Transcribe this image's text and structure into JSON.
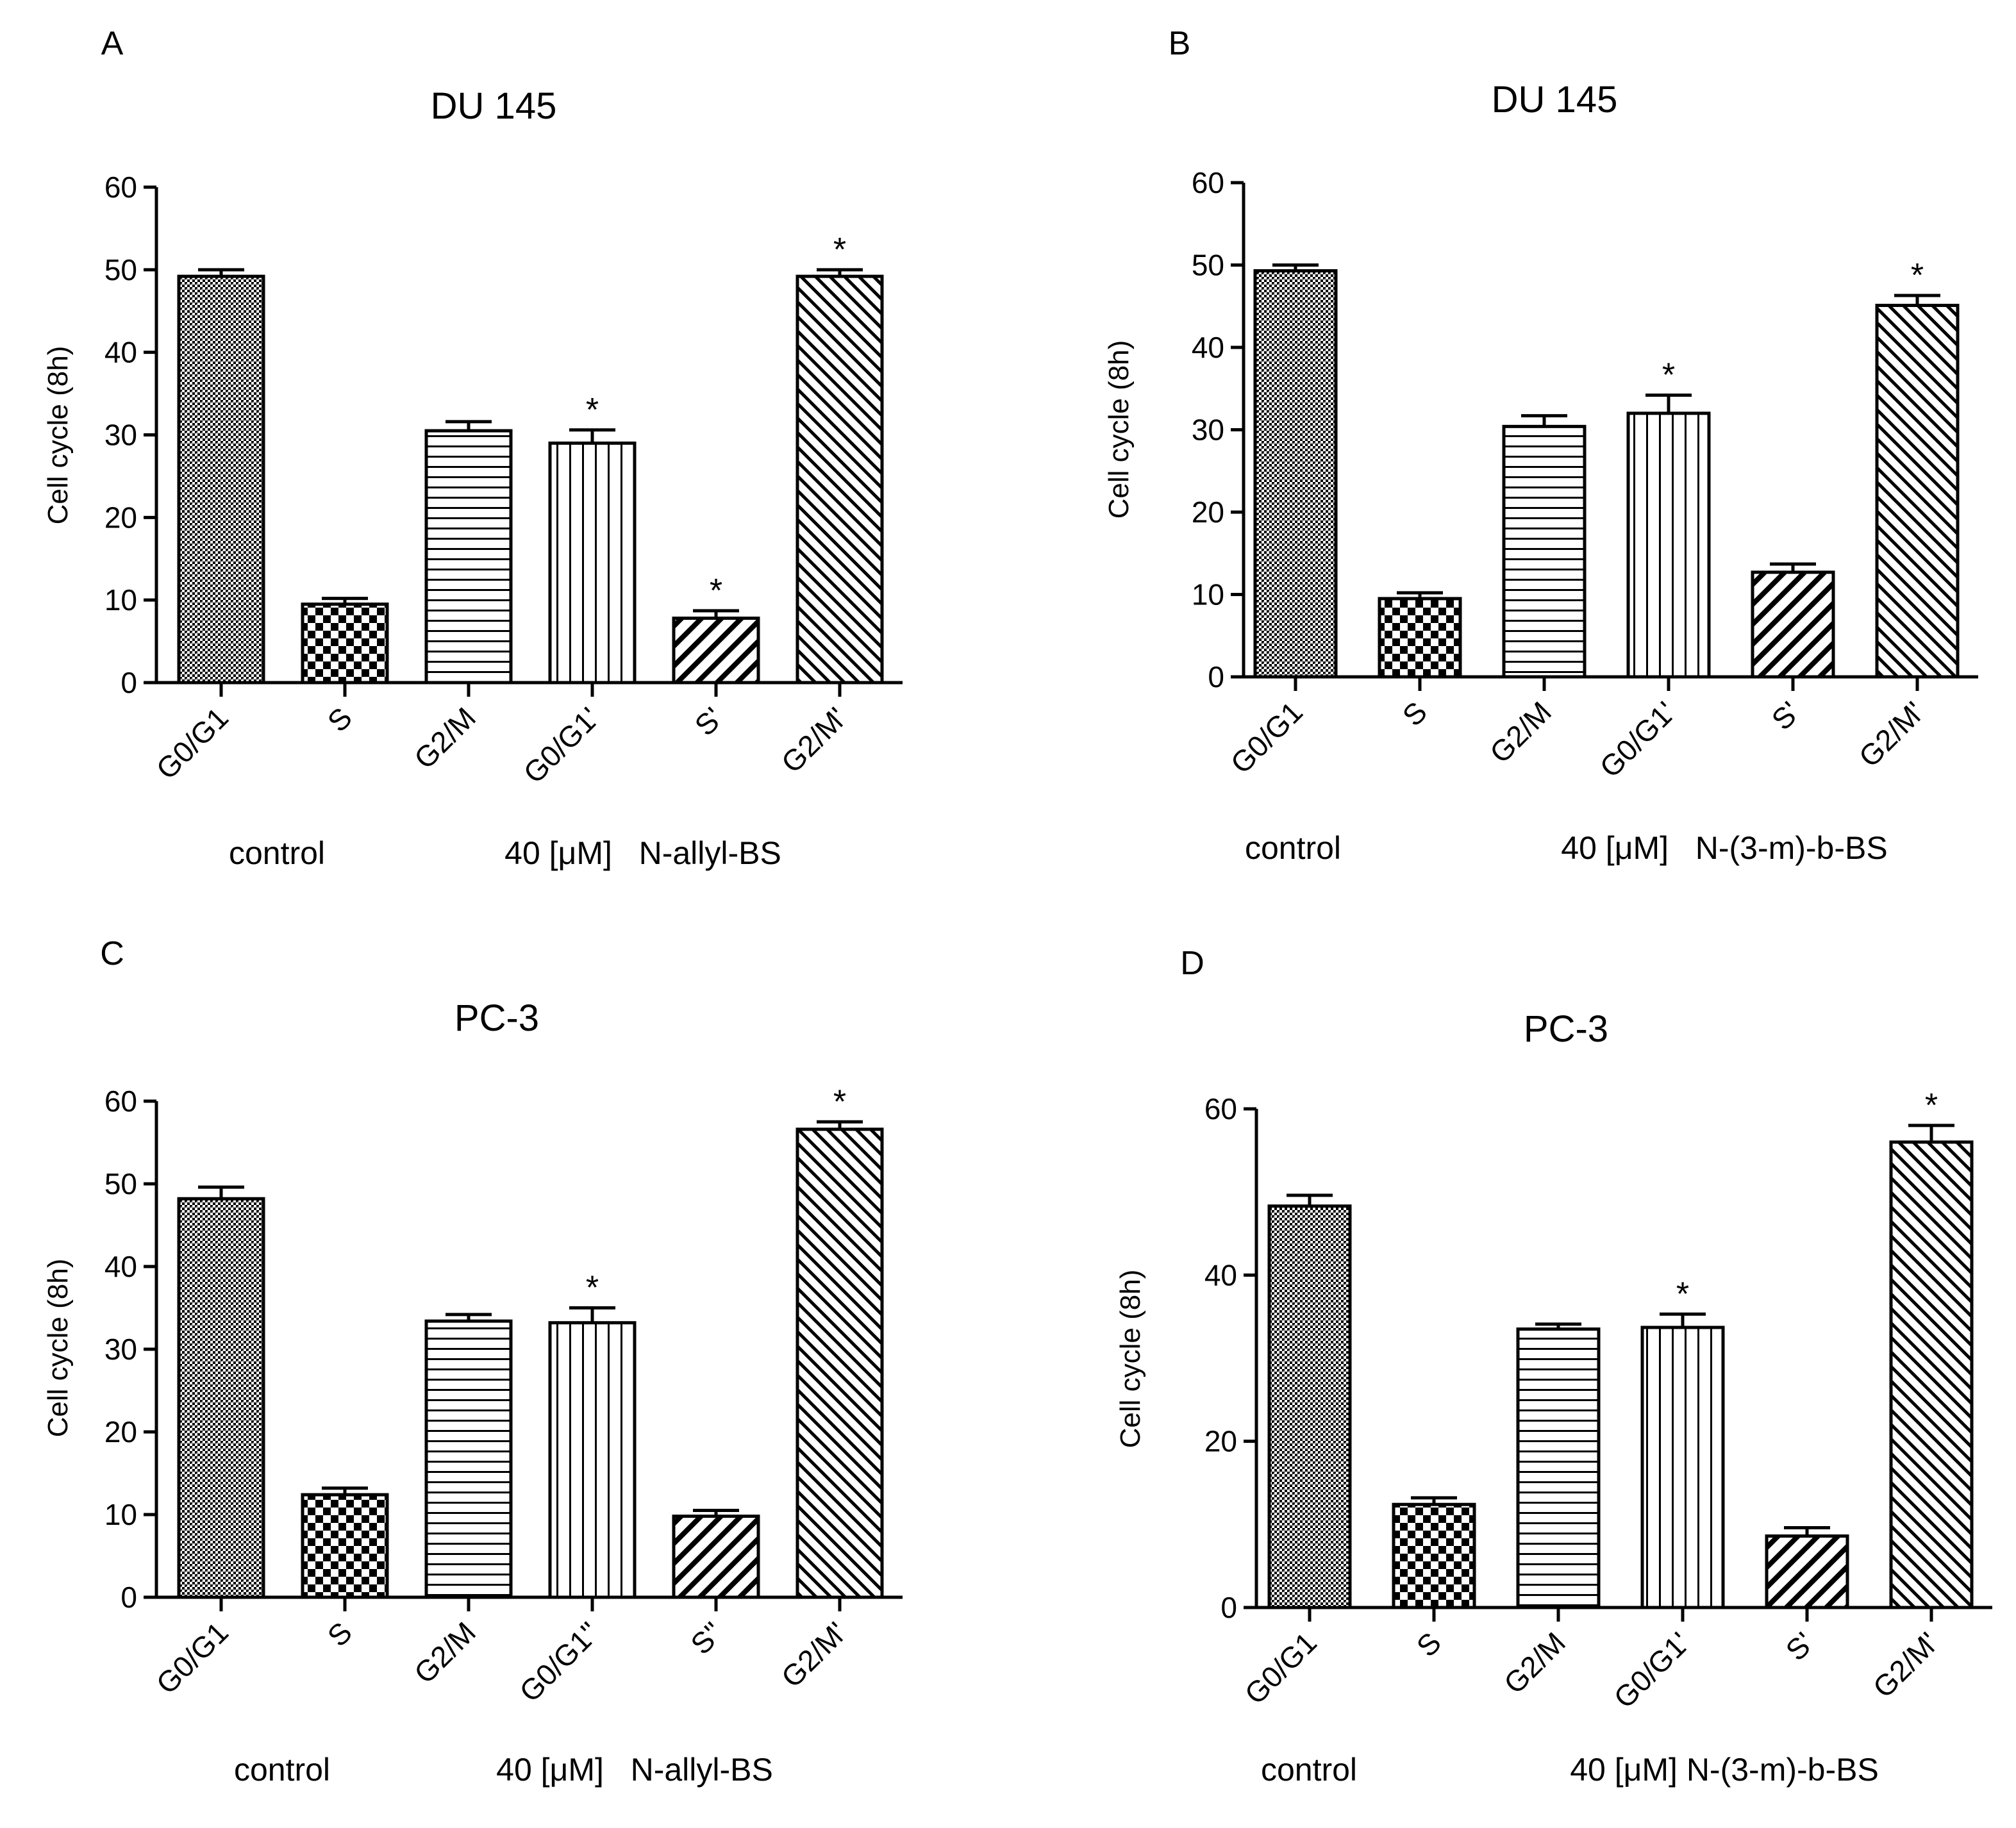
{
  "colors": {
    "ink": "#000000",
    "background": "#ffffff"
  },
  "chart_data": [
    {
      "panel": "A",
      "type": "bar",
      "title": "DU 145",
      "ylabel": "Cell cycle (8h)",
      "ylim": [
        0,
        60
      ],
      "yticks": [
        0,
        10,
        20,
        30,
        40,
        50,
        60
      ],
      "categories": [
        "G0/G1",
        "S",
        "G2/M",
        "G0/G1'",
        "S'",
        "G2/M'"
      ],
      "values": [
        49.2,
        9.5,
        30.5,
        29.0,
        7.8,
        49.2
      ],
      "errors": [
        0.8,
        0.7,
        1.1,
        1.6,
        0.9,
        0.8
      ],
      "significant": [
        false,
        false,
        false,
        true,
        true,
        true
      ],
      "star_label": "*",
      "patterns": [
        "stipple",
        "checker",
        "hlines",
        "vlines",
        "diag",
        "diag-dense"
      ],
      "group_labels": [
        "control",
        "40 [μM]   N-allyl-BS"
      ]
    },
    {
      "panel": "B",
      "type": "bar",
      "title": "DU 145",
      "ylabel": "Cell cycle (8h)",
      "ylim": [
        0,
        60
      ],
      "yticks": [
        0,
        10,
        20,
        30,
        40,
        50,
        60
      ],
      "categories": [
        "G0/G1",
        "S",
        "G2/M",
        "G0/G1'",
        "S'",
        "G2/M'"
      ],
      "values": [
        49.3,
        9.5,
        30.4,
        32.0,
        12.7,
        45.1
      ],
      "errors": [
        0.7,
        0.7,
        1.3,
        2.2,
        1.0,
        1.2
      ],
      "significant": [
        false,
        false,
        false,
        true,
        false,
        true
      ],
      "star_label": "*",
      "patterns": [
        "stipple",
        "checker",
        "hlines",
        "vlines",
        "diag",
        "diag-dense"
      ],
      "group_labels": [
        "control",
        "40 [μM]   N-(3-m)-b-BS"
      ]
    },
    {
      "panel": "C",
      "type": "bar",
      "title": "PC-3",
      "ylabel": "Cell cycle (8h)",
      "ylim": [
        0,
        60
      ],
      "yticks": [
        0,
        10,
        20,
        30,
        40,
        50,
        60
      ],
      "categories": [
        "G0/G1",
        "S",
        "G2/M",
        "G0/G1''",
        "S''",
        "G2/M'"
      ],
      "values": [
        48.2,
        12.4,
        33.4,
        33.2,
        9.8,
        56.6
      ],
      "errors": [
        1.4,
        0.8,
        0.8,
        1.8,
        0.7,
        0.9
      ],
      "significant": [
        false,
        false,
        false,
        true,
        false,
        true
      ],
      "star_label": "*",
      "patterns": [
        "stipple",
        "checker",
        "hlines",
        "vlines",
        "diag",
        "diag-dense"
      ],
      "group_labels": [
        "control",
        "40 [μM]   N-allyl-BS"
      ]
    },
    {
      "panel": "D",
      "type": "bar",
      "title": "PC-3",
      "ylabel": "Cell cycle (8h)",
      "ylim": [
        0,
        60
      ],
      "yticks": [
        0,
        20,
        40,
        60
      ],
      "categories": [
        "G0/G1",
        "S",
        "G2/M",
        "G0/G1'",
        "S'",
        "G2/M'"
      ],
      "values": [
        48.3,
        12.4,
        33.5,
        33.7,
        8.6,
        56.0
      ],
      "errors": [
        1.3,
        0.8,
        0.6,
        1.6,
        1.0,
        2.0
      ],
      "significant": [
        false,
        false,
        false,
        true,
        false,
        true
      ],
      "star_label": "*",
      "patterns": [
        "stipple",
        "checker",
        "hlines",
        "vlines",
        "diag",
        "diag-dense"
      ],
      "group_labels": [
        "control",
        "40 [μM] N-(3-m)-b-BS"
      ]
    }
  ]
}
